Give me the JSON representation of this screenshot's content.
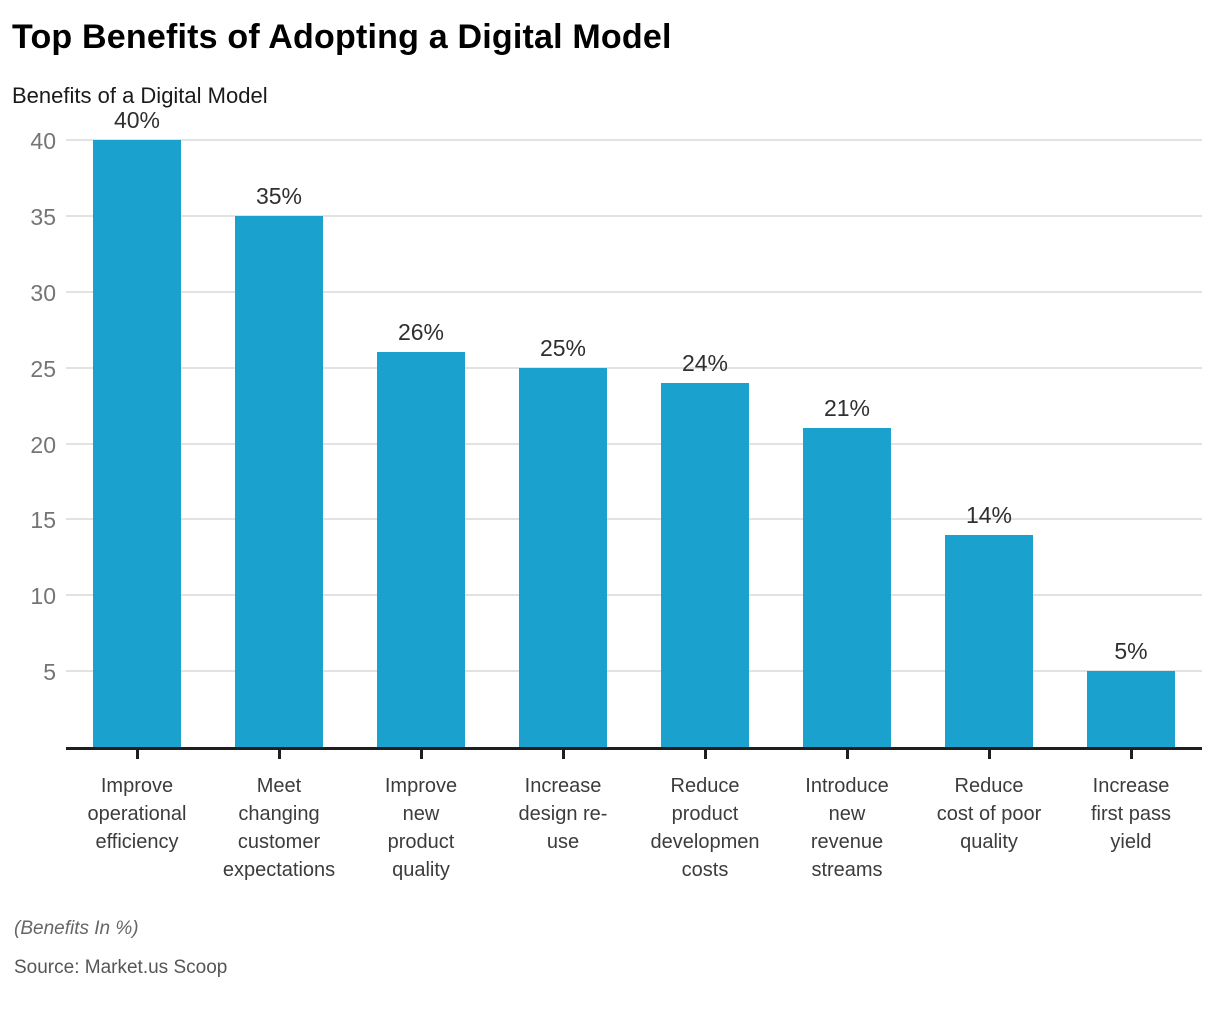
{
  "title": "Top Benefits of Adopting a Digital Model",
  "subtitle": "Benefits of a Digital Model",
  "footnote": "(Benefits In %)",
  "source": "Source: Market.us Scoop",
  "colors": {
    "bar": "#1ba1ce",
    "gridline": "#e2e2e2",
    "axis_line": "#1f1f1f",
    "y_tick_text": "#757575",
    "value_label_text": "#2f2f2f",
    "category_text": "#3c3c3c"
  },
  "chart_data": {
    "type": "bar",
    "title": "Benefits of a Digital Model",
    "xlabel": "",
    "ylabel": "",
    "ylim": [
      0,
      40
    ],
    "yticks": [
      5,
      10,
      15,
      20,
      25,
      30,
      35,
      40
    ],
    "grid": true,
    "legend": "none",
    "categories": [
      "Improve\noperational\nefficiency",
      "Meet\nchanging\ncustomer\nexpectations",
      "Improve\nnew\nproduct\nquality",
      "Increase\ndesign re-\nuse",
      "Reduce\nproduct\ndevelopmen\ncosts",
      "Introduce\nnew\nrevenue\nstreams",
      "Reduce\ncost of poor\nquality",
      "Increase\nfirst pass\nyield"
    ],
    "values": [
      40,
      35,
      26,
      25,
      24,
      21,
      14,
      5
    ],
    "value_labels": [
      "40%",
      "35%",
      "26%",
      "25%",
      "24%",
      "21%",
      "14%",
      "5%"
    ]
  }
}
